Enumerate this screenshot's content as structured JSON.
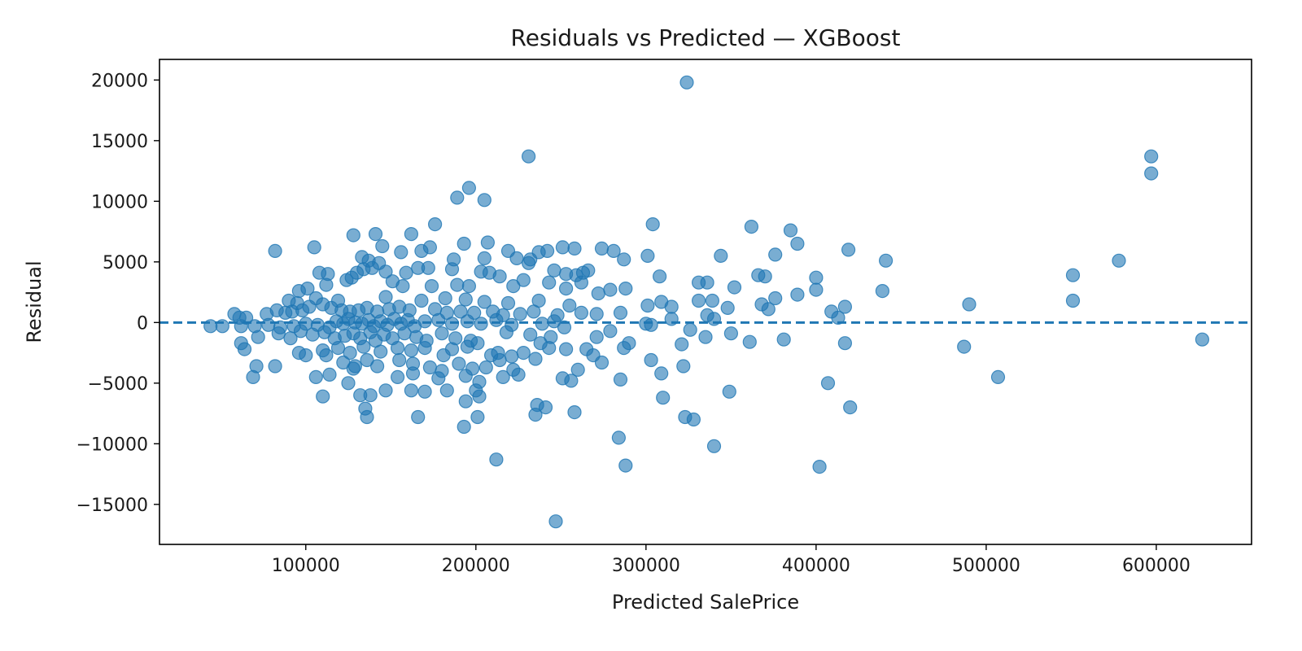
{
  "chart_data": {
    "type": "scatter",
    "title": "Residuals vs Predicted — XGBoost",
    "xlabel": "Predicted SalePrice",
    "ylabel": "Residual",
    "xlim": [
      14000,
      656000
    ],
    "ylim": [
      -18300,
      21700
    ],
    "xticks": [
      100000,
      200000,
      300000,
      400000,
      500000,
      600000
    ],
    "yticks": [
      -15000,
      -10000,
      -5000,
      0,
      5000,
      10000,
      15000,
      20000
    ],
    "grid": false,
    "reference_line": {
      "y": 0,
      "style": "dashed"
    },
    "point_color": "#1f77b4",
    "point_opacity": 0.6,
    "points": [
      [
        324000,
        19800
      ],
      [
        231000,
        13700
      ],
      [
        597000,
        13700
      ],
      [
        597000,
        12300
      ],
      [
        196000,
        11100
      ],
      [
        189000,
        10300
      ],
      [
        205000,
        10100
      ],
      [
        304000,
        8100
      ],
      [
        176000,
        8100
      ],
      [
        362000,
        7900
      ],
      [
        385000,
        7600
      ],
      [
        128000,
        7200
      ],
      [
        141000,
        7300
      ],
      [
        162000,
        7300
      ],
      [
        274000,
        6100
      ],
      [
        207000,
        6600
      ],
      [
        193000,
        6500
      ],
      [
        389000,
        6500
      ],
      [
        419000,
        6000
      ],
      [
        82000,
        5900
      ],
      [
        105000,
        6200
      ],
      [
        145000,
        6300
      ],
      [
        173000,
        6200
      ],
      [
        168000,
        5900
      ],
      [
        156000,
        5800
      ],
      [
        219000,
        5900
      ],
      [
        237000,
        5800
      ],
      [
        242000,
        5900
      ],
      [
        251000,
        6200
      ],
      [
        258000,
        6100
      ],
      [
        281000,
        5900
      ],
      [
        301000,
        5500
      ],
      [
        344000,
        5500
      ],
      [
        376000,
        5600
      ],
      [
        441000,
        5100
      ],
      [
        578000,
        5100
      ],
      [
        551000,
        3900
      ],
      [
        133000,
        5400
      ],
      [
        137000,
        5100
      ],
      [
        143000,
        4900
      ],
      [
        187000,
        5200
      ],
      [
        205000,
        5300
      ],
      [
        224000,
        5300
      ],
      [
        231000,
        4900
      ],
      [
        232000,
        5200
      ],
      [
        287000,
        5200
      ],
      [
        108000,
        4100
      ],
      [
        113000,
        4000
      ],
      [
        130000,
        4100
      ],
      [
        134000,
        4400
      ],
      [
        139000,
        4500
      ],
      [
        147000,
        4200
      ],
      [
        159000,
        4100
      ],
      [
        166000,
        4500
      ],
      [
        172000,
        4500
      ],
      [
        186000,
        4400
      ],
      [
        203000,
        4200
      ],
      [
        208000,
        4100
      ],
      [
        214000,
        3800
      ],
      [
        246000,
        4300
      ],
      [
        253000,
        4000
      ],
      [
        259000,
        3900
      ],
      [
        263000,
        4100
      ],
      [
        266000,
        4300
      ],
      [
        308000,
        3800
      ],
      [
        366000,
        3900
      ],
      [
        370000,
        3800
      ],
      [
        400000,
        3700
      ],
      [
        96000,
        2600
      ],
      [
        101000,
        2800
      ],
      [
        112000,
        3100
      ],
      [
        124000,
        3500
      ],
      [
        127000,
        3700
      ],
      [
        151000,
        3400
      ],
      [
        157000,
        3000
      ],
      [
        174000,
        3000
      ],
      [
        189000,
        3100
      ],
      [
        196000,
        3000
      ],
      [
        222000,
        3000
      ],
      [
        228000,
        3500
      ],
      [
        243000,
        3300
      ],
      [
        253000,
        2800
      ],
      [
        262000,
        3300
      ],
      [
        279000,
        2700
      ],
      [
        288000,
        2800
      ],
      [
        331000,
        3300
      ],
      [
        336000,
        3300
      ],
      [
        352000,
        2900
      ],
      [
        389000,
        2300
      ],
      [
        400000,
        2700
      ],
      [
        439000,
        2600
      ],
      [
        551000,
        1800
      ],
      [
        490000,
        1500
      ],
      [
        90000,
        1800
      ],
      [
        95000,
        1600
      ],
      [
        106000,
        2000
      ],
      [
        119000,
        1800
      ],
      [
        147000,
        2100
      ],
      [
        168000,
        1800
      ],
      [
        182000,
        2000
      ],
      [
        194000,
        1900
      ],
      [
        205000,
        1700
      ],
      [
        219000,
        1600
      ],
      [
        237000,
        1800
      ],
      [
        255000,
        1400
      ],
      [
        272000,
        2400
      ],
      [
        301000,
        1400
      ],
      [
        309000,
        1700
      ],
      [
        315000,
        1300
      ],
      [
        331000,
        1800
      ],
      [
        339000,
        1800
      ],
      [
        348000,
        1200
      ],
      [
        368000,
        1500
      ],
      [
        372000,
        1100
      ],
      [
        376000,
        2000
      ],
      [
        409000,
        900
      ],
      [
        417000,
        1300
      ],
      [
        413000,
        400
      ],
      [
        58000,
        700
      ],
      [
        61000,
        400
      ],
      [
        65000,
        400
      ],
      [
        77000,
        700
      ],
      [
        83000,
        1000
      ],
      [
        88000,
        800
      ],
      [
        92000,
        900
      ],
      [
        98000,
        1000
      ],
      [
        102000,
        1300
      ],
      [
        110000,
        1500
      ],
      [
        115000,
        1200
      ],
      [
        121000,
        1000
      ],
      [
        126000,
        900
      ],
      [
        131000,
        1000
      ],
      [
        136000,
        1200
      ],
      [
        142000,
        900
      ],
      [
        149000,
        1100
      ],
      [
        155000,
        1300
      ],
      [
        161000,
        1000
      ],
      [
        176000,
        1100
      ],
      [
        183000,
        800
      ],
      [
        191000,
        900
      ],
      [
        199000,
        800
      ],
      [
        210000,
        900
      ],
      [
        216000,
        600
      ],
      [
        226000,
        700
      ],
      [
        234000,
        900
      ],
      [
        248000,
        600
      ],
      [
        262000,
        800
      ],
      [
        271000,
        700
      ],
      [
        285000,
        800
      ],
      [
        315000,
        300
      ],
      [
        336000,
        600
      ],
      [
        340000,
        300
      ],
      [
        44000,
        -300
      ],
      [
        51000,
        -300
      ],
      [
        62000,
        -300
      ],
      [
        70000,
        -300
      ],
      [
        78000,
        -200
      ],
      [
        85000,
        -400
      ],
      [
        93000,
        -300
      ],
      [
        100000,
        -100
      ],
      [
        107000,
        -200
      ],
      [
        114000,
        -400
      ],
      [
        118000,
        100
      ],
      [
        122000,
        -100
      ],
      [
        125000,
        300
      ],
      [
        129000,
        0
      ],
      [
        133000,
        -100
      ],
      [
        137000,
        200
      ],
      [
        140000,
        -300
      ],
      [
        144000,
        100
      ],
      [
        148000,
        -200
      ],
      [
        152000,
        300
      ],
      [
        156000,
        -100
      ],
      [
        160000,
        200
      ],
      [
        164000,
        -300
      ],
      [
        170000,
        100
      ],
      [
        178000,
        200
      ],
      [
        186000,
        -100
      ],
      [
        195000,
        100
      ],
      [
        203000,
        -100
      ],
      [
        212000,
        200
      ],
      [
        221000,
        -200
      ],
      [
        239000,
        -100
      ],
      [
        246000,
        100
      ],
      [
        252000,
        -400
      ],
      [
        300000,
        -100
      ],
      [
        303000,
        -200
      ],
      [
        326000,
        -600
      ],
      [
        279000,
        -700
      ],
      [
        72000,
        -1200
      ],
      [
        84000,
        -900
      ],
      [
        91000,
        -1300
      ],
      [
        97000,
        -700
      ],
      [
        104000,
        -1000
      ],
      [
        111000,
        -800
      ],
      [
        117000,
        -1300
      ],
      [
        123000,
        -1100
      ],
      [
        128000,
        -900
      ],
      [
        132000,
        -1300
      ],
      [
        138000,
        -800
      ],
      [
        141000,
        -1500
      ],
      [
        146000,
        -1000
      ],
      [
        151000,
        -1300
      ],
      [
        158000,
        -900
      ],
      [
        165000,
        -1200
      ],
      [
        171000,
        -1500
      ],
      [
        180000,
        -900
      ],
      [
        188000,
        -1300
      ],
      [
        197000,
        -1500
      ],
      [
        218000,
        -800
      ],
      [
        232000,
        -1000
      ],
      [
        244000,
        -1200
      ],
      [
        271000,
        -1200
      ],
      [
        321000,
        -1800
      ],
      [
        335000,
        -1200
      ],
      [
        350000,
        -900
      ],
      [
        361000,
        -1600
      ],
      [
        381000,
        -1400
      ],
      [
        417000,
        -1700
      ],
      [
        627000,
        -1400
      ],
      [
        62000,
        -1700
      ],
      [
        64000,
        -2200
      ],
      [
        100000,
        -2700
      ],
      [
        96000,
        -2500
      ],
      [
        110000,
        -2300
      ],
      [
        119000,
        -2100
      ],
      [
        126000,
        -2500
      ],
      [
        134000,
        -2000
      ],
      [
        144000,
        -2400
      ],
      [
        154000,
        -2100
      ],
      [
        162000,
        -2300
      ],
      [
        170000,
        -2100
      ],
      [
        181000,
        -2700
      ],
      [
        186000,
        -2200
      ],
      [
        195000,
        -2000
      ],
      [
        201000,
        -1700
      ],
      [
        209000,
        -2700
      ],
      [
        213000,
        -2500
      ],
      [
        221000,
        -2800
      ],
      [
        228000,
        -2500
      ],
      [
        238000,
        -1700
      ],
      [
        243000,
        -2100
      ],
      [
        253000,
        -2200
      ],
      [
        265000,
        -2200
      ],
      [
        269000,
        -2700
      ],
      [
        287000,
        -2100
      ],
      [
        290000,
        -1700
      ],
      [
        303000,
        -3100
      ],
      [
        322000,
        -3600
      ],
      [
        487000,
        -2000
      ],
      [
        71000,
        -3600
      ],
      [
        82000,
        -3600
      ],
      [
        112000,
        -2700
      ],
      [
        122000,
        -3300
      ],
      [
        129000,
        -3600
      ],
      [
        136000,
        -3100
      ],
      [
        142000,
        -3600
      ],
      [
        155000,
        -3100
      ],
      [
        163000,
        -3400
      ],
      [
        173000,
        -3700
      ],
      [
        180000,
        -4000
      ],
      [
        190000,
        -3400
      ],
      [
        198000,
        -3800
      ],
      [
        206000,
        -3700
      ],
      [
        214000,
        -3100
      ],
      [
        222000,
        -3900
      ],
      [
        235000,
        -3000
      ],
      [
        260000,
        -3900
      ],
      [
        274000,
        -3300
      ],
      [
        309000,
        -4200
      ],
      [
        69000,
        -4500
      ],
      [
        106000,
        -4500
      ],
      [
        114000,
        -4300
      ],
      [
        128000,
        -3800
      ],
      [
        154000,
        -4500
      ],
      [
        163000,
        -4200
      ],
      [
        178000,
        -4600
      ],
      [
        194000,
        -4400
      ],
      [
        202000,
        -4900
      ],
      [
        216000,
        -4500
      ],
      [
        225000,
        -4300
      ],
      [
        251000,
        -4600
      ],
      [
        256000,
        -4800
      ],
      [
        285000,
        -4700
      ],
      [
        407000,
        -5000
      ],
      [
        507000,
        -4500
      ],
      [
        110000,
        -6100
      ],
      [
        125000,
        -5000
      ],
      [
        132000,
        -6000
      ],
      [
        138000,
        -6000
      ],
      [
        147000,
        -5600
      ],
      [
        162000,
        -5600
      ],
      [
        170000,
        -5700
      ],
      [
        183000,
        -5600
      ],
      [
        194000,
        -6500
      ],
      [
        200000,
        -5600
      ],
      [
        202000,
        -6100
      ],
      [
        236000,
        -6800
      ],
      [
        241000,
        -7000
      ],
      [
        258000,
        -7400
      ],
      [
        235000,
        -7600
      ],
      [
        310000,
        -6200
      ],
      [
        349000,
        -5700
      ],
      [
        420000,
        -7000
      ],
      [
        135000,
        -7100
      ],
      [
        136000,
        -7800
      ],
      [
        166000,
        -7800
      ],
      [
        201000,
        -7800
      ],
      [
        193000,
        -8600
      ],
      [
        323000,
        -7800
      ],
      [
        328000,
        -8000
      ],
      [
        284000,
        -9500
      ],
      [
        340000,
        -10200
      ],
      [
        212000,
        -11300
      ],
      [
        288000,
        -11800
      ],
      [
        402000,
        -11900
      ],
      [
        247000,
        -16400
      ]
    ]
  }
}
